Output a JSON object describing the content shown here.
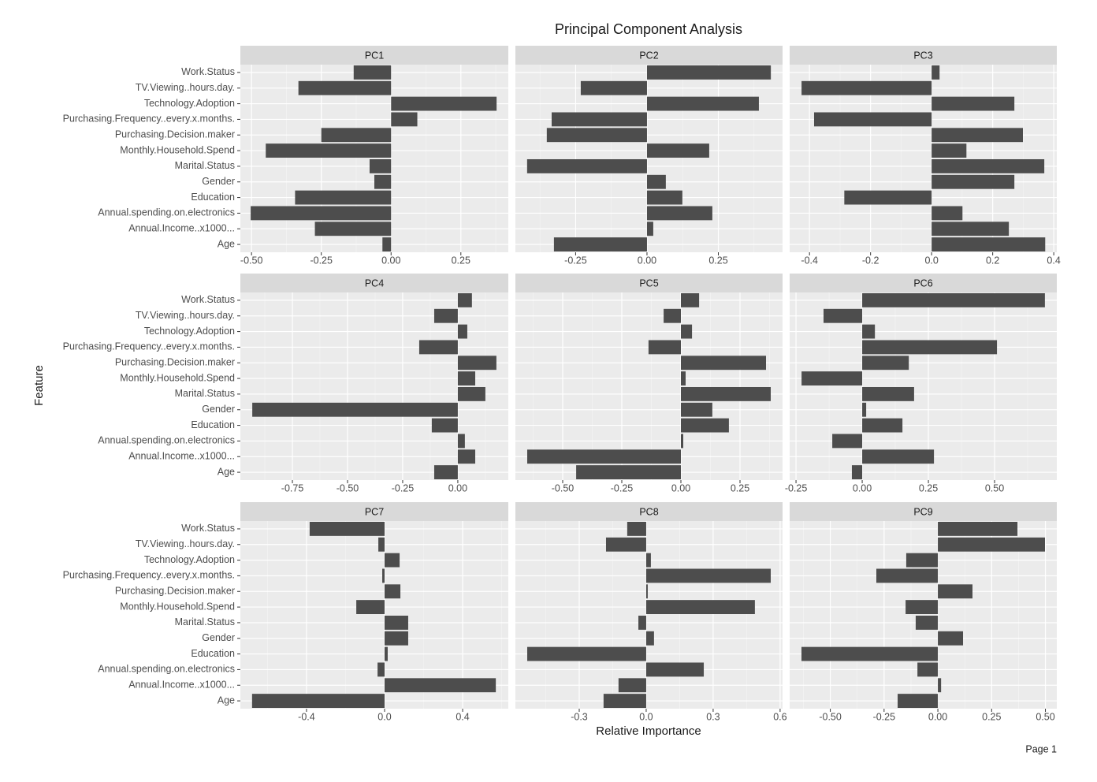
{
  "title": "Principal Component Analysis",
  "x_label": "Relative Importance",
  "y_label": "Feature",
  "page_label": "Page 1",
  "categories": [
    "Work.Status",
    "TV.Viewing..hours.day.",
    "Technology.Adoption",
    "Purchasing.Frequency..every.x.months.",
    "Purchasing.Decision.maker",
    "Monthly.Household.Spend",
    "Marital.Status",
    "Gender",
    "Education",
    "Annual.spending.on.electronics",
    "Annual.Income..x1000...",
    "Age"
  ],
  "chart_data": [
    {
      "type": "bar",
      "title": "PC1",
      "color": "#4d4d4d",
      "xlim": [
        -0.54,
        0.42
      ],
      "xticks": [
        {
          "value": -0.5,
          "label": "-0.50"
        },
        -0.25,
        {
          "value": 0,
          "label": "0.00"
        },
        0.25
      ],
      "values": [
        -0.134,
        -0.332,
        0.378,
        0.094,
        -0.25,
        -0.449,
        -0.077,
        -0.06,
        -0.344,
        -0.503,
        -0.273,
        -0.031
      ]
    },
    {
      "type": "bar",
      "title": "PC2",
      "color": "#4d4d4d",
      "xlim": [
        -0.461,
        0.475
      ],
      "xticks": [
        -0.25,
        {
          "value": 0,
          "label": "0.00"
        },
        0.25
      ],
      "values": [
        0.434,
        -0.232,
        0.392,
        -0.334,
        -0.351,
        0.218,
        -0.42,
        0.066,
        0.124,
        0.229,
        0.022,
        -0.326
      ]
    },
    {
      "type": "bar",
      "title": "PC3",
      "color": "#4d4d4d",
      "xlim": [
        -0.465,
        0.41
      ],
      "xticks": [
        -0.4,
        -0.2,
        {
          "value": 0,
          "label": "0.0"
        },
        0.2,
        0.4
      ],
      "values": [
        0.026,
        -0.426,
        0.271,
        -0.385,
        0.299,
        0.114,
        0.369,
        0.271,
        -0.286,
        0.101,
        0.253,
        0.372
      ]
    },
    {
      "type": "bar",
      "title": "PC4",
      "color": "#4d4d4d",
      "xlim": [
        -0.986,
        0.229
      ],
      "xticks": [
        -0.75,
        {
          "value": -0.5,
          "label": "-0.50"
        },
        -0.25,
        {
          "value": 0,
          "label": "0.00"
        }
      ],
      "values": [
        0.064,
        -0.107,
        0.043,
        -0.175,
        0.175,
        0.079,
        0.125,
        -0.932,
        -0.118,
        0.032,
        0.079,
        -0.107
      ]
    },
    {
      "type": "bar",
      "title": "PC5",
      "color": "#4d4d4d",
      "xlim": [
        -0.7,
        0.43
      ],
      "xticks": [
        {
          "value": -0.5,
          "label": "-0.50"
        },
        -0.25,
        {
          "value": 0,
          "label": "0.00"
        },
        0.25
      ],
      "values": [
        0.077,
        -0.073,
        0.047,
        -0.137,
        0.36,
        0.02,
        0.38,
        0.133,
        0.203,
        0.01,
        -0.65,
        -0.443
      ]
    },
    {
      "type": "bar",
      "title": "PC6",
      "color": "#4d4d4d",
      "xlim": [
        -0.274,
        0.735
      ],
      "xticks": [
        -0.25,
        {
          "value": 0,
          "label": "0.00"
        },
        0.25,
        {
          "value": 0.5,
          "label": "0.50"
        }
      ],
      "values": [
        0.69,
        -0.146,
        0.048,
        0.509,
        0.176,
        -0.229,
        0.196,
        0.015,
        0.152,
        -0.113,
        0.271,
        -0.039
      ]
    },
    {
      "type": "bar",
      "title": "PC7",
      "color": "#4d4d4d",
      "xlim": [
        -0.739,
        0.634
      ],
      "xticks": [
        -0.4,
        {
          "value": 0,
          "label": "0.0"
        },
        0.4
      ],
      "values": [
        -0.384,
        -0.032,
        0.077,
        -0.012,
        0.081,
        -0.145,
        0.121,
        0.121,
        0.016,
        -0.036,
        0.57,
        -0.679
      ]
    },
    {
      "type": "bar",
      "title": "PC8",
      "color": "#4d4d4d",
      "xlim": [
        -0.586,
        0.611
      ],
      "xticks": [
        -0.3,
        {
          "value": 0,
          "label": "0.0"
        },
        0.3,
        0.6
      ],
      "values": [
        -0.085,
        -0.18,
        0.021,
        0.558,
        0.007,
        0.487,
        -0.035,
        0.035,
        -0.533,
        0.258,
        -0.124,
        -0.191
      ]
    },
    {
      "type": "bar",
      "title": "PC9",
      "color": "#4d4d4d",
      "xlim": [
        -0.689,
        0.553
      ],
      "xticks": [
        {
          "value": -0.5,
          "label": "-0.50"
        },
        -0.25,
        {
          "value": 0,
          "label": "0.00"
        },
        0.25,
        {
          "value": 0.5,
          "label": "0.50"
        }
      ],
      "values": [
        0.37,
        0.498,
        -0.147,
        -0.286,
        0.161,
        -0.15,
        -0.103,
        0.117,
        -0.634,
        -0.095,
        0.015,
        -0.187
      ]
    }
  ]
}
